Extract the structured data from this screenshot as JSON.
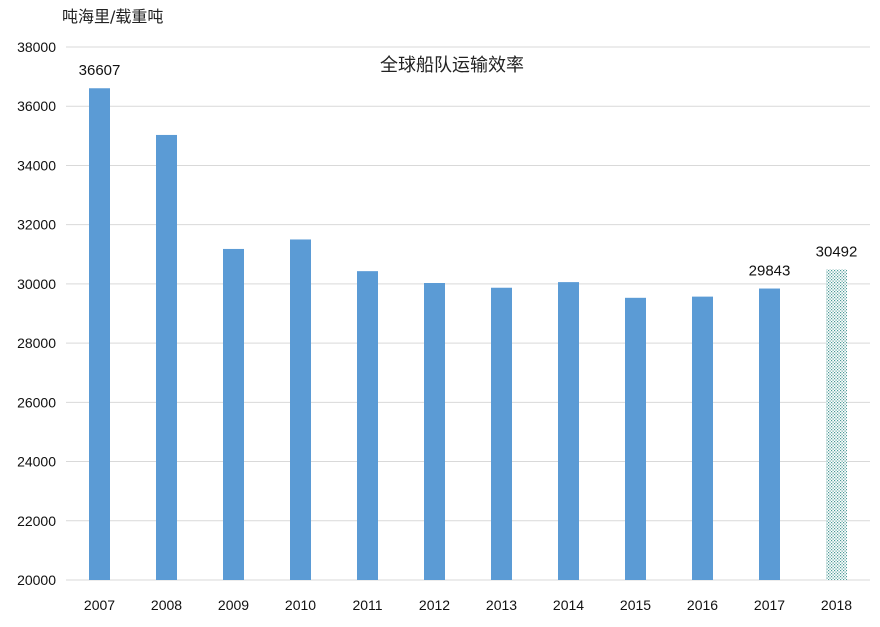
{
  "chart_data": {
    "type": "bar",
    "title": "全球船队运输效率",
    "ylabel": "吨海里/载重吨",
    "xlabel": "",
    "ylim": [
      20000,
      38000
    ],
    "yticks": [
      20000,
      22000,
      24000,
      26000,
      28000,
      30000,
      32000,
      34000,
      36000,
      38000
    ],
    "grid": true,
    "categories": [
      "2007",
      "2008",
      "2009",
      "2010",
      "2011",
      "2012",
      "2013",
      "2014",
      "2015",
      "2016",
      "2017",
      "2018"
    ],
    "values": [
      36607,
      35030,
      31180,
      31500,
      30430,
      30030,
      29870,
      30060,
      29530,
      29570,
      29843,
      30492
    ],
    "data_labels": [
      {
        "index": 0,
        "text": "36607"
      },
      {
        "index": 10,
        "text": "29843"
      },
      {
        "index": 11,
        "text": "30492"
      }
    ],
    "bar_color": "#5b9bd5",
    "highlight_color": "#4a9a96",
    "highlight_index": 11,
    "highlight_style": "hatched"
  }
}
